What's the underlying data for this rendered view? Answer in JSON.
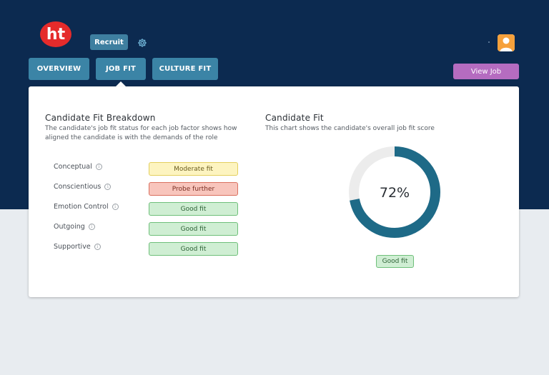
{
  "header": {
    "logo_text": "ht",
    "recruit_label": "Recruit"
  },
  "tabs": [
    {
      "label": "OVERVIEW"
    },
    {
      "label": "JOB FIT"
    },
    {
      "label": "CULTURE FIT"
    }
  ],
  "view_job_label": "View Job",
  "breakdown": {
    "title": "Candidate Fit Breakdown",
    "desc_line1": "The candidate's job fit status for each job factor shows how",
    "desc_line2": "aligned the candidate is with the demands of the role",
    "factors": [
      {
        "name": "Conceptual",
        "status": "Moderate fit",
        "level": "moderate"
      },
      {
        "name": "Conscientious",
        "status": "Probe further",
        "level": "probe"
      },
      {
        "name": "Emotion Control",
        "status": "Good fit",
        "level": "good"
      },
      {
        "name": "Outgoing",
        "status": "Good fit",
        "level": "good"
      },
      {
        "name": "Supportive",
        "status": "Good fit",
        "level": "good"
      }
    ]
  },
  "fit": {
    "title": "Candidate Fit",
    "desc": "This chart shows the candidate's overall job fit score",
    "score_label": "72%",
    "score_value": 72,
    "status": "Good fit"
  },
  "colors": {
    "header_bg": "#0c2a50",
    "tab_bg": "#3b84a6",
    "view_job_bg": "#b56cc0",
    "donut_fill": "#1e6a87",
    "donut_track": "#ececec"
  }
}
